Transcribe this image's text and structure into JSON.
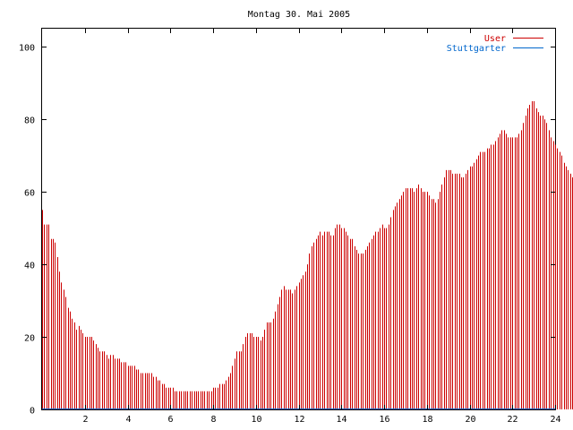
{
  "chart_data": {
    "type": "bar",
    "title": "Montag 30. Mai 2005",
    "xlabel": "",
    "ylabel": "",
    "xlim": [
      0,
      24
    ],
    "ylim": [
      0,
      105
    ],
    "x_ticks": [
      "2",
      "4",
      "6",
      "8",
      "10",
      "12",
      "14",
      "16",
      "18",
      "20",
      "22",
      "24"
    ],
    "y_ticks": [
      "0",
      "20",
      "40",
      "60",
      "80",
      "100"
    ],
    "grid": false,
    "legend_position": "top-right",
    "series": [
      {
        "name": "User",
        "color": "#cc0000",
        "x_step": 0.1,
        "values": [
          55,
          51,
          51,
          51,
          47,
          47,
          46,
          42,
          38,
          35,
          33,
          31,
          28,
          27,
          25,
          24,
          22,
          23,
          22,
          21,
          20,
          20,
          20,
          20,
          19,
          18,
          17,
          16,
          16,
          16,
          15,
          14,
          15,
          15,
          14,
          14,
          14,
          13,
          13,
          13,
          12,
          12,
          12,
          12,
          11,
          11,
          10,
          10,
          10,
          10,
          10,
          10,
          9,
          9,
          8,
          8,
          7,
          7,
          6,
          6,
          6,
          6,
          5,
          5,
          5,
          5,
          5,
          5,
          5,
          5,
          5,
          5,
          5,
          5,
          5,
          5,
          5,
          5,
          5,
          5,
          6,
          6,
          6,
          7,
          7,
          7,
          8,
          9,
          10,
          12,
          14,
          16,
          16,
          16,
          18,
          20,
          21,
          21,
          21,
          20,
          20,
          20,
          19,
          20,
          22,
          24,
          24,
          24,
          25,
          27,
          29,
          31,
          33,
          34,
          33,
          33,
          33,
          32,
          33,
          34,
          35,
          36,
          37,
          38,
          40,
          43,
          45,
          46,
          47,
          48,
          49,
          48,
          49,
          49,
          49,
          48,
          48,
          50,
          51,
          51,
          50,
          50,
          49,
          48,
          47,
          47,
          45,
          44,
          43,
          43,
          43,
          44,
          45,
          46,
          47,
          48,
          49,
          49,
          50,
          51,
          50,
          50,
          51,
          53,
          55,
          56,
          57,
          58,
          59,
          60,
          61,
          61,
          61,
          61,
          60,
          61,
          62,
          61,
          60,
          60,
          60,
          59,
          58,
          58,
          57,
          58,
          60,
          62,
          64,
          66,
          66,
          66,
          65,
          65,
          65,
          65,
          64,
          64,
          65,
          66,
          67,
          67,
          68,
          69,
          70,
          71,
          71,
          71,
          72,
          72,
          73,
          73,
          74,
          75,
          76,
          77,
          77,
          76,
          75,
          75,
          75,
          75,
          75,
          76,
          77,
          79,
          81,
          83,
          84,
          85,
          85,
          83,
          82,
          81,
          81,
          80,
          79,
          77,
          75,
          74,
          73,
          72,
          71,
          70,
          68,
          67,
          66,
          65,
          64,
          63,
          62,
          62
        ]
      },
      {
        "name": "Stuttgarter",
        "color": "#0066cc",
        "values": [
          0,
          0
        ]
      }
    ]
  }
}
